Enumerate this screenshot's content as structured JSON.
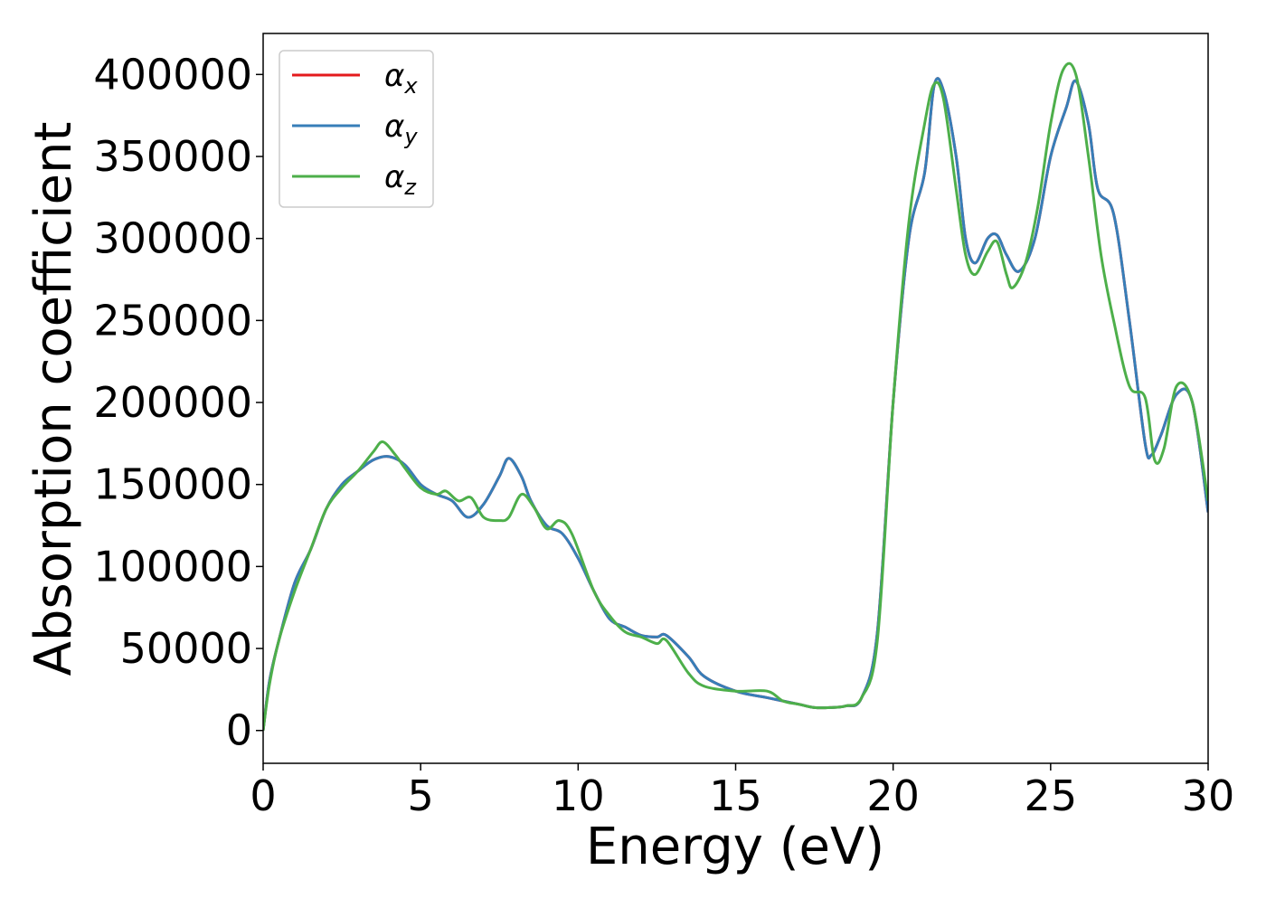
{
  "chart_data": {
    "type": "line",
    "title": "",
    "xlabel": "Energy (eV)",
    "ylabel": "Absorption coefficient",
    "xlim": [
      0,
      30
    ],
    "ylim": [
      -20000,
      425000
    ],
    "xticks": [
      0,
      5,
      10,
      15,
      20,
      25,
      30
    ],
    "yticks": [
      0,
      50000,
      100000,
      150000,
      200000,
      250000,
      300000,
      350000,
      400000
    ],
    "grid": false,
    "legend_position": "top-left",
    "series": [
      {
        "name": "αx",
        "symbol": "α",
        "subscript": "x",
        "color": "#e41a1c",
        "x": [
          0,
          0.2,
          0.5,
          1,
          1.5,
          2,
          2.5,
          3,
          3.5,
          4,
          4.5,
          5,
          5.5,
          6,
          6.5,
          7,
          7.5,
          7.8,
          8.2,
          8.5,
          9,
          9.5,
          10,
          10.5,
          11,
          11.5,
          12,
          12.5,
          12.8,
          13.5,
          14,
          15,
          16,
          17,
          17.5,
          18,
          18.5,
          19,
          19.5,
          20,
          20.5,
          21,
          21.3,
          21.6,
          22,
          22.3,
          22.6,
          23,
          23.3,
          23.6,
          24,
          24.5,
          25,
          25.5,
          25.8,
          26.2,
          26.5,
          27,
          27.5,
          28,
          28.2,
          28.5,
          29,
          29.5,
          30
        ],
        "y": [
          0,
          30000,
          55000,
          90000,
          110000,
          135000,
          150000,
          158000,
          165000,
          167000,
          162000,
          150000,
          144000,
          140000,
          130000,
          138000,
          155000,
          166000,
          155000,
          140000,
          125000,
          120000,
          105000,
          85000,
          68000,
          63000,
          58000,
          57000,
          58000,
          45000,
          33000,
          24000,
          20000,
          16000,
          14000,
          14000,
          15000,
          20000,
          60000,
          200000,
          300000,
          340000,
          393000,
          390000,
          350000,
          300000,
          285000,
          300000,
          302000,
          290000,
          280000,
          300000,
          350000,
          380000,
          396000,
          370000,
          330000,
          315000,
          250000,
          175000,
          168000,
          180000,
          205000,
          200000,
          133000
        ]
      },
      {
        "name": "αy",
        "symbol": "α",
        "subscript": "y",
        "color": "#377eb8",
        "x": [
          0,
          0.2,
          0.5,
          1,
          1.5,
          2,
          2.5,
          3,
          3.5,
          4,
          4.5,
          5,
          5.5,
          6,
          6.5,
          7,
          7.5,
          7.8,
          8.2,
          8.5,
          9,
          9.5,
          10,
          10.5,
          11,
          11.5,
          12,
          12.5,
          12.8,
          13.5,
          14,
          15,
          16,
          17,
          17.5,
          18,
          18.5,
          19,
          19.5,
          20,
          20.5,
          21,
          21.3,
          21.6,
          22,
          22.3,
          22.6,
          23,
          23.3,
          23.6,
          24,
          24.5,
          25,
          25.5,
          25.8,
          26.2,
          26.5,
          27,
          27.5,
          28,
          28.2,
          28.5,
          29,
          29.5,
          30
        ],
        "y": [
          0,
          30000,
          55000,
          90000,
          110000,
          135000,
          150000,
          158000,
          165000,
          167000,
          162000,
          150000,
          144000,
          140000,
          130000,
          138000,
          155000,
          166000,
          155000,
          140000,
          125000,
          120000,
          105000,
          85000,
          68000,
          63000,
          58000,
          57000,
          58000,
          45000,
          33000,
          24000,
          20000,
          16000,
          14000,
          14000,
          15000,
          20000,
          60000,
          200000,
          300000,
          340000,
          393000,
          390000,
          350000,
          300000,
          285000,
          300000,
          302000,
          290000,
          280000,
          300000,
          350000,
          380000,
          396000,
          370000,
          330000,
          315000,
          250000,
          175000,
          168000,
          180000,
          205000,
          200000,
          133000
        ]
      },
      {
        "name": "αz",
        "symbol": "α",
        "subscript": "z",
        "color": "#4daf4a",
        "x": [
          0,
          0.2,
          0.5,
          1,
          1.5,
          2,
          2.5,
          3,
          3.5,
          3.8,
          4.2,
          4.5,
          5,
          5.5,
          5.8,
          6.2,
          6.6,
          7,
          7.5,
          7.8,
          8.2,
          8.6,
          9,
          9.4,
          9.8,
          10.5,
          11,
          11.5,
          12,
          12.5,
          12.8,
          13.5,
          14,
          15,
          16,
          16.5,
          17,
          17.5,
          18,
          18.5,
          19,
          19.5,
          20,
          20.5,
          21,
          21.3,
          21.6,
          22,
          22.3,
          22.6,
          23,
          23.3,
          23.6,
          23.8,
          24.2,
          24.6,
          25,
          25.4,
          25.8,
          26.2,
          26.6,
          27,
          27.5,
          28,
          28.3,
          28.6,
          29,
          29.5,
          30
        ],
        "y": [
          0,
          28000,
          55000,
          85000,
          110000,
          135000,
          148000,
          158000,
          170000,
          176000,
          168000,
          160000,
          148000,
          144000,
          146000,
          140000,
          142000,
          130000,
          128000,
          130000,
          144000,
          136000,
          123000,
          128000,
          120000,
          85000,
          70000,
          60000,
          57000,
          53000,
          55000,
          35000,
          27000,
          24000,
          24000,
          18000,
          16000,
          14000,
          14000,
          15000,
          20000,
          55000,
          200000,
          310000,
          370000,
          394000,
          385000,
          330000,
          290000,
          278000,
          292000,
          298000,
          278000,
          270000,
          285000,
          320000,
          370000,
          403000,
          400000,
          350000,
          290000,
          250000,
          210000,
          203000,
          165000,
          172000,
          210000,
          200000,
          140000
        ]
      }
    ]
  }
}
